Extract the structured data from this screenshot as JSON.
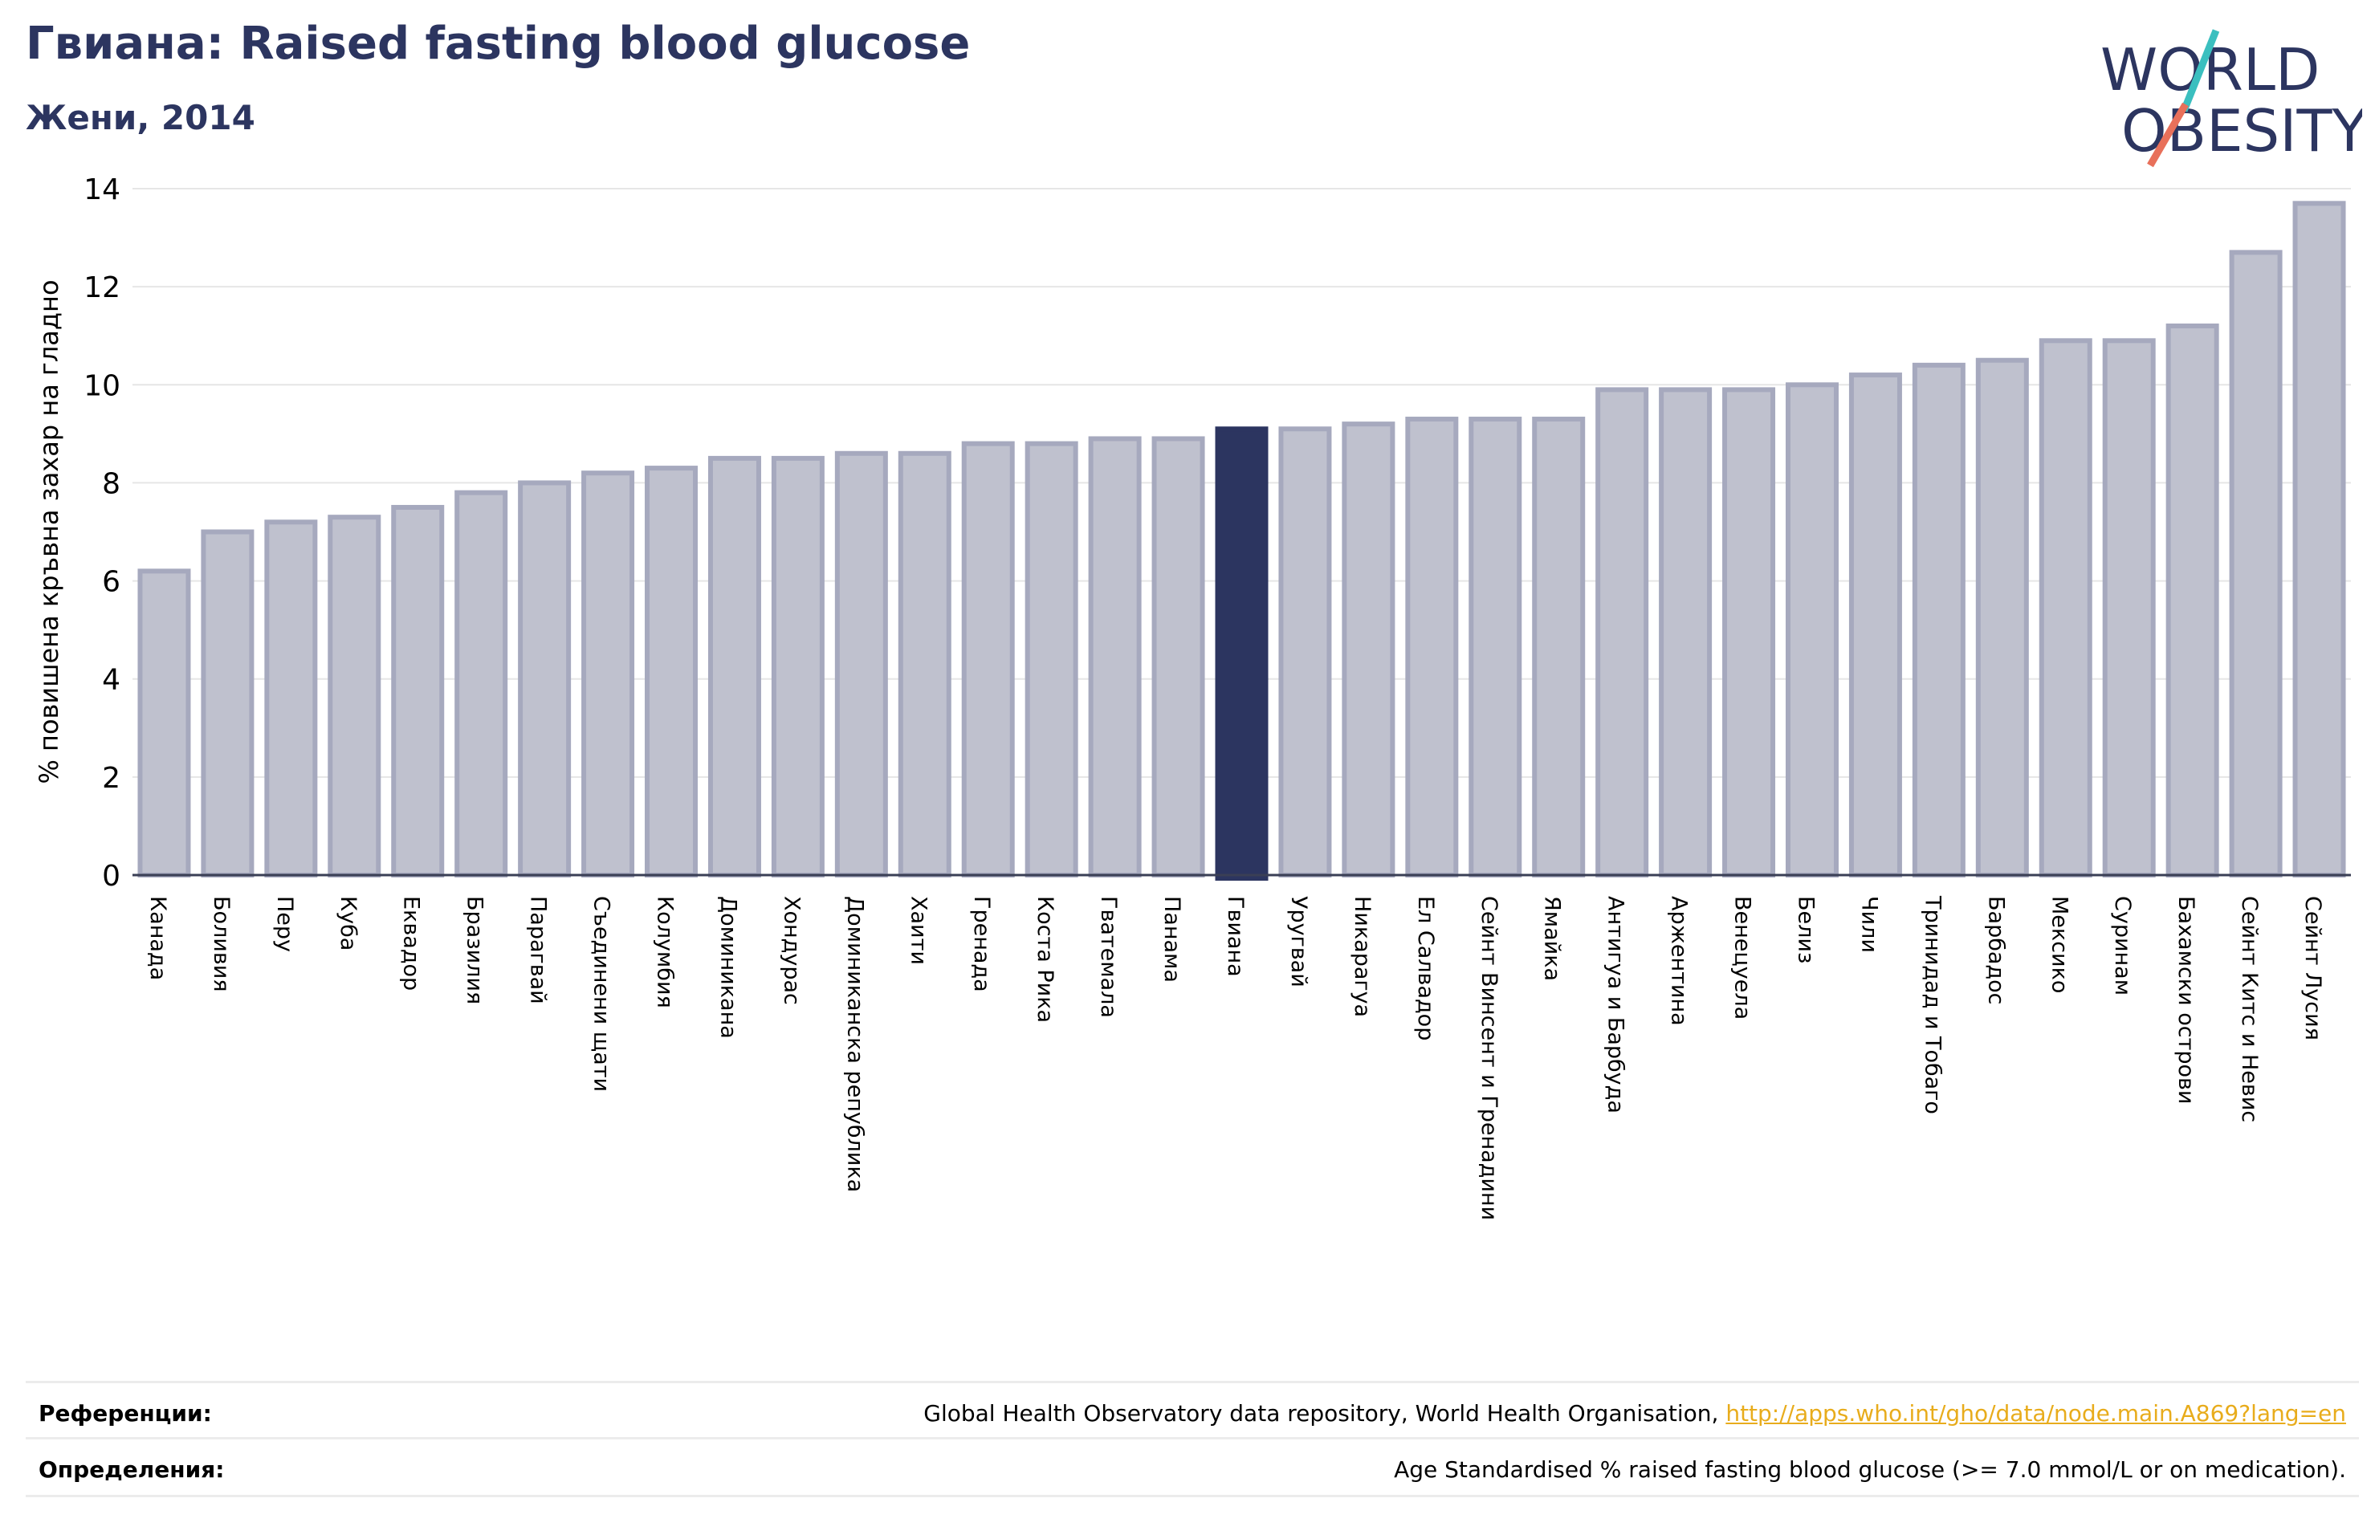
{
  "header": {
    "title": "Гвиана: Raised fasting blood glucose",
    "subtitle": "Жени, 2014"
  },
  "logo": {
    "line1": "WORLD",
    "line2": "OBESITY",
    "text_color": "#2c3560",
    "slash_top_color": "#3bbfbf",
    "slash_bottom_color": "#e8705a"
  },
  "chart_data": {
    "type": "bar",
    "ylabel": "% повишена кръвна захар на гладно",
    "xlabel": "",
    "ylim": [
      0,
      14
    ],
    "yticks": [
      0,
      2,
      4,
      6,
      8,
      10,
      12,
      14
    ],
    "grid": true,
    "highlight": "Гвиана",
    "bar_color": "#bfc1ce",
    "bar_edge_color": "#a6a9be",
    "highlight_color": "#2c3560",
    "categories": [
      "Канада",
      "Боливия",
      "Перу",
      "Куба",
      "Еквадор",
      "Бразилия",
      "Парагвай",
      "Съединени щати",
      "Колумбия",
      "Доминикана",
      "Хондурас",
      "Доминиканска република",
      "Хаити",
      "Гренада",
      "Коста Рика",
      "Гватемала",
      "Панама",
      "Гвиана",
      "Уругвай",
      "Никарагуа",
      "Ел Салвадор",
      "Сейнт Винсент и Гренадини",
      "Ямайка",
      "Антигуа и Барбуда",
      "Аржентина",
      "Венецуела",
      "Белиз",
      "Чили",
      "Тринидад и Тобаго",
      "Барбадос",
      "Мексико",
      "Суринам",
      "Бахамски острови",
      "Сейнт Китс и Невис",
      "Сейнт Лусия"
    ],
    "values": [
      6.2,
      7.0,
      7.2,
      7.3,
      7.5,
      7.8,
      8.0,
      8.2,
      8.3,
      8.5,
      8.5,
      8.6,
      8.6,
      8.8,
      8.8,
      8.9,
      8.9,
      9.1,
      9.1,
      9.2,
      9.3,
      9.3,
      9.3,
      9.9,
      9.9,
      9.9,
      10.0,
      10.2,
      10.4,
      10.5,
      10.9,
      10.9,
      11.2,
      12.7,
      13.7
    ]
  },
  "footer": {
    "references_label": "Референции:",
    "references_text": "Global Health Observatory data repository, World Health Organisation, ",
    "references_link": "http://apps.who.int/gho/data/node.main.A869?lang=en",
    "definitions_label": "Определения:",
    "definitions_text": "Age Standardised % raised fasting blood glucose (>= 7.0 mmol/L or on medication)."
  }
}
